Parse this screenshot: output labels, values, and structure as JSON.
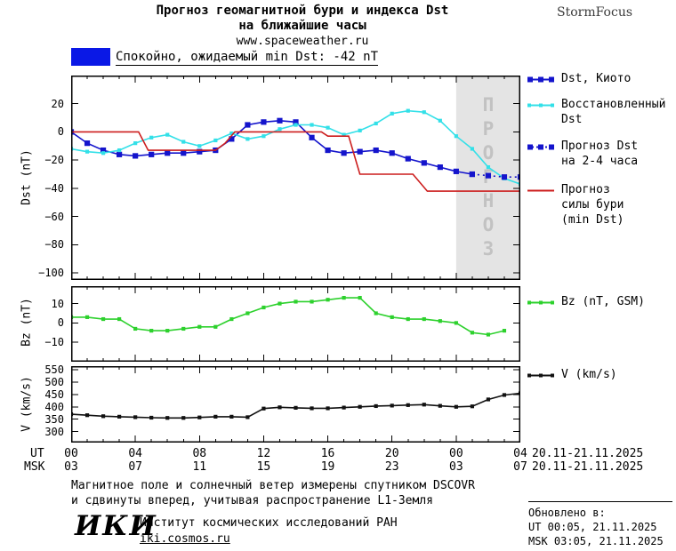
{
  "header": {
    "title_line1": "Прогноз геомагнитной бури и индекса Dst",
    "title_line2": "на ближайшие часы",
    "url": "www.spaceweather.ru",
    "brand": "StormFocus"
  },
  "status": {
    "text": "Спокойно, ожидаемый min Dst: -42 nT",
    "box_color": "#0a18e6"
  },
  "legend": {
    "dst_kyoto": "Dst, Киото",
    "reconstructed": "Восстановленный\nDst",
    "forecast_dst": "Прогноз Dst\nна 2-4 часа",
    "forecast_storm": "Прогноз\nсилы бури\n(min Dst)",
    "bz": "Bz (nT, GSM)",
    "v": "V (km/s)"
  },
  "xaxis": {
    "ticks": [
      0,
      4,
      8,
      12,
      16,
      20,
      24,
      28
    ],
    "ut_prefix": "UT",
    "msk_prefix": "MSK",
    "ut_labels": [
      "00",
      "04",
      "08",
      "12",
      "16",
      "20",
      "00",
      "04"
    ],
    "msk_labels": [
      "03",
      "07",
      "11",
      "15",
      "19",
      "23",
      "03",
      "07"
    ],
    "ut_date_range": "20.11-21.11.2025",
    "msk_date_range": "20.11-21.11.2025"
  },
  "chart_data": [
    {
      "id": "dst",
      "type": "line",
      "ylabel": "Dst (nT)",
      "ylim": [
        -105,
        40
      ],
      "yticks": [
        20,
        0,
        -20,
        -40,
        -60,
        -80,
        -100
      ],
      "xlim": [
        0,
        28
      ],
      "forecast_region": {
        "x0": 24,
        "x1": 28,
        "label": "ПРОГНОЗ",
        "fill": "#e4e4e4",
        "text_color": "#c2c2c2"
      },
      "series": [
        {
          "name": "Dst, Киото",
          "color": "#1414cc",
          "style": "solid",
          "marker": "square",
          "x": [
            0,
            1,
            2,
            3,
            4,
            5,
            6,
            7,
            8,
            9,
            10,
            11,
            12,
            13,
            14,
            15,
            16,
            17,
            18,
            19,
            20,
            21,
            22,
            23,
            24,
            25
          ],
          "values": [
            0,
            -8,
            -13,
            -16,
            -17,
            -16,
            -15,
            -15,
            -14,
            -13,
            -5,
            5,
            7,
            8,
            7,
            -4,
            -13,
            -15,
            -14,
            -13,
            -15,
            -19,
            -22,
            -25,
            -28,
            -30
          ]
        },
        {
          "name": "Восстановленный Dst",
          "color": "#33e0e8",
          "style": "solid",
          "marker": "square-small",
          "x": [
            0,
            1,
            2,
            3,
            4,
            5,
            6,
            7,
            8,
            9,
            10,
            11,
            12,
            13,
            14,
            15,
            16,
            17,
            18,
            19,
            20,
            21,
            22,
            23,
            24,
            25,
            26,
            27,
            28
          ],
          "values": [
            -12,
            -14,
            -15,
            -13,
            -8,
            -4,
            -2,
            -7,
            -10,
            -6,
            -1,
            -5,
            -3,
            2,
            5,
            5,
            3,
            -2,
            1,
            6,
            13,
            15,
            14,
            8,
            -3,
            -12,
            -25,
            -33,
            -37
          ]
        },
        {
          "name": "Прогноз Dst на 2-4 часа",
          "color": "#1414cc",
          "style": "dotted",
          "marker": "square",
          "x": [
            25,
            26,
            27,
            28
          ],
          "values": [
            -30,
            -31,
            -32,
            -32
          ]
        },
        {
          "name": "Прогноз силы бури (min Dst)",
          "color": "#cc1d1d",
          "style": "solid",
          "marker": "none",
          "x": [
            0,
            4.2,
            4.8,
            9,
            9.6,
            10.2,
            15.6,
            16,
            17.3,
            18,
            21.3,
            22.2,
            28
          ],
          "values": [
            0,
            0,
            -13,
            -13,
            -8,
            0,
            0,
            -3,
            -3,
            -30,
            -30,
            -42,
            -42
          ]
        }
      ]
    },
    {
      "id": "bz",
      "type": "line",
      "ylabel": "Bz (nT)",
      "ylim": [
        -20,
        19
      ],
      "yticks": [
        10,
        0,
        -10
      ],
      "xlim": [
        0,
        28
      ],
      "series": [
        {
          "name": "Bz (nT, GSM)",
          "color": "#2dd12d",
          "style": "solid",
          "marker": "square-small",
          "x": [
            0,
            1,
            2,
            3,
            4,
            5,
            6,
            7,
            8,
            9,
            10,
            11,
            12,
            13,
            14,
            15,
            16,
            17,
            18,
            19,
            20,
            21,
            22,
            23,
            24,
            25,
            26,
            27
          ],
          "values": [
            3,
            3,
            2,
            2,
            -3,
            -4,
            -4,
            -3,
            -2,
            -2,
            2,
            5,
            8,
            10,
            11,
            11,
            12,
            13,
            13,
            5,
            3,
            2,
            2,
            1,
            0,
            -5,
            -6,
            -4
          ]
        }
      ]
    },
    {
      "id": "v",
      "type": "line",
      "ylabel": "V (km/s)",
      "ylim": [
        255,
        565
      ],
      "yticks": [
        550,
        500,
        450,
        400,
        350,
        300
      ],
      "xlim": [
        0,
        28
      ],
      "series": [
        {
          "name": "V (km/s)",
          "color": "#111111",
          "style": "solid",
          "marker": "square-small",
          "x": [
            0,
            1,
            2,
            3,
            4,
            5,
            6,
            7,
            8,
            9,
            10,
            11,
            12,
            13,
            14,
            15,
            16,
            17,
            18,
            19,
            20,
            21,
            22,
            23,
            24,
            25,
            26,
            27,
            28
          ],
          "values": [
            370,
            366,
            362,
            360,
            358,
            356,
            355,
            355,
            357,
            360,
            360,
            358,
            393,
            398,
            396,
            394,
            394,
            397,
            400,
            403,
            405,
            407,
            409,
            404,
            400,
            402,
            430,
            448,
            455
          ]
        }
      ]
    }
  ],
  "footer": {
    "note_line1": "Магнитное поле и солнечный ветер измерены спутником DSCOVR",
    "note_line2": "и сдвинуты вперед, учитывая распространение L1-Земля",
    "logo": "ИКИ",
    "institute": "Институт космических исследований РАН",
    "institute_url": "iki.cosmos.ru",
    "updated_label": "Обновлено в:",
    "updated_ut": "UT  00:05, 21.11.2025",
    "updated_msk": "MSK 03:05, 21.11.2025"
  }
}
